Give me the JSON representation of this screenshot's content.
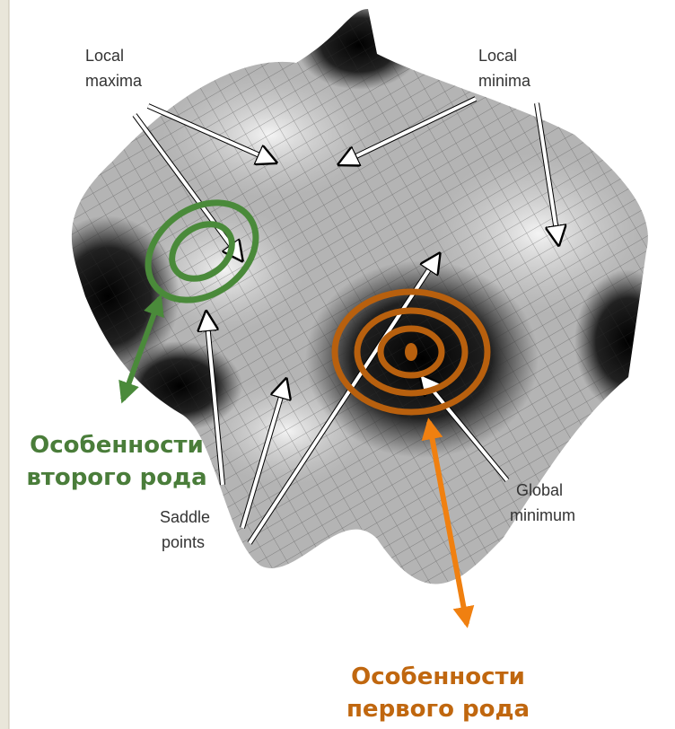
{
  "labels": {
    "local_maxima": [
      "Local",
      "maxima"
    ],
    "local_minima": [
      "Local",
      "minima"
    ],
    "saddle_points": [
      "Saddle",
      "points"
    ],
    "global_minimum": [
      "Global",
      "minimum"
    ]
  },
  "annotations": {
    "second_kind": [
      "Особенности",
      "второго рода"
    ],
    "first_kind": [
      "Особенности",
      "первого рода"
    ]
  }
}
